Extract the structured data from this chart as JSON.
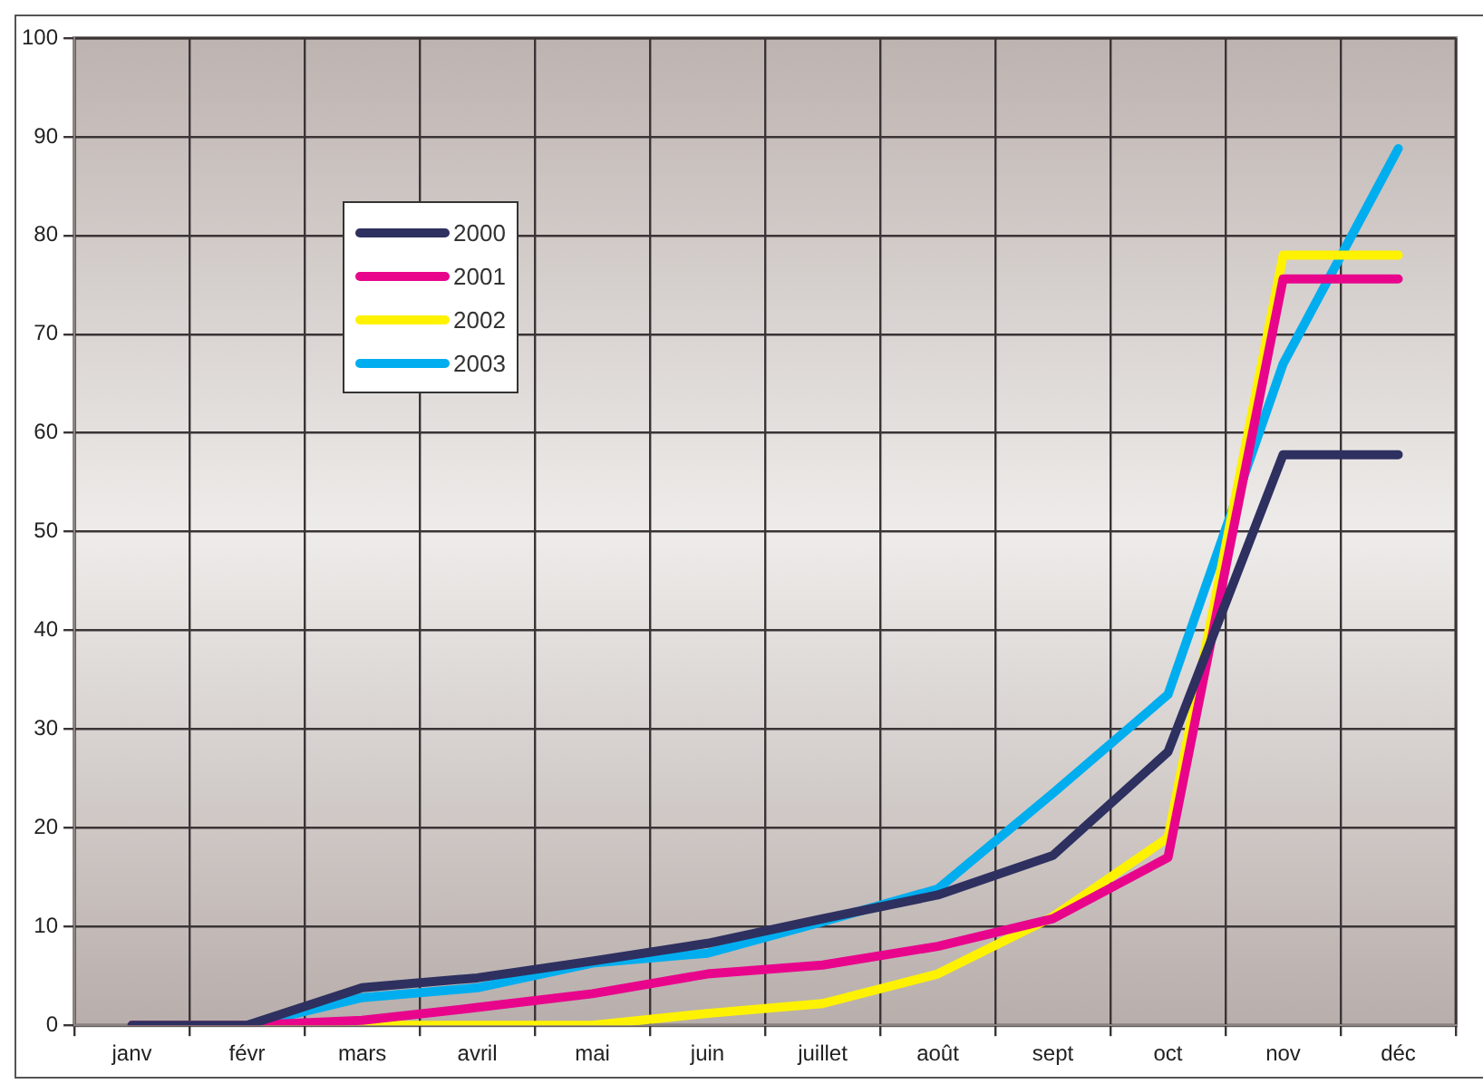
{
  "chart_data": {
    "type": "line",
    "categories": [
      "janv",
      "févr",
      "mars",
      "avril",
      "mai",
      "juin",
      "juillet",
      "août",
      "sept",
      "oct",
      "nov",
      "déc"
    ],
    "series": [
      {
        "name": "2000",
        "color": "#2e3060",
        "values": [
          0,
          0,
          3.8,
          4.8,
          6.5,
          8.3,
          10.8,
          13.2,
          17.2,
          27.7,
          57.8,
          57.8
        ]
      },
      {
        "name": "2001",
        "color": "#e8058c",
        "values": [
          0,
          0,
          0.5,
          1.8,
          3.2,
          5.2,
          6.1,
          8,
          10.8,
          17,
          75.6,
          75.6
        ]
      },
      {
        "name": "2002",
        "color": "#fff200",
        "values": [
          0,
          0,
          0,
          0,
          0,
          1.2,
          2.2,
          5.2,
          11,
          19,
          78,
          78
        ]
      },
      {
        "name": "2003",
        "color": "#00aeef",
        "values": [
          0,
          0,
          2.8,
          3.8,
          6.3,
          7.3,
          10.5,
          13.8,
          23.5,
          33.5,
          67,
          88.8
        ]
      }
    ],
    "ylim": [
      0,
      100
    ],
    "yticks": [
      0,
      10,
      20,
      30,
      40,
      50,
      60,
      70,
      80,
      90,
      100
    ],
    "grid": true,
    "legend": "top left",
    "marker": "none",
    "line_style": "solid"
  }
}
